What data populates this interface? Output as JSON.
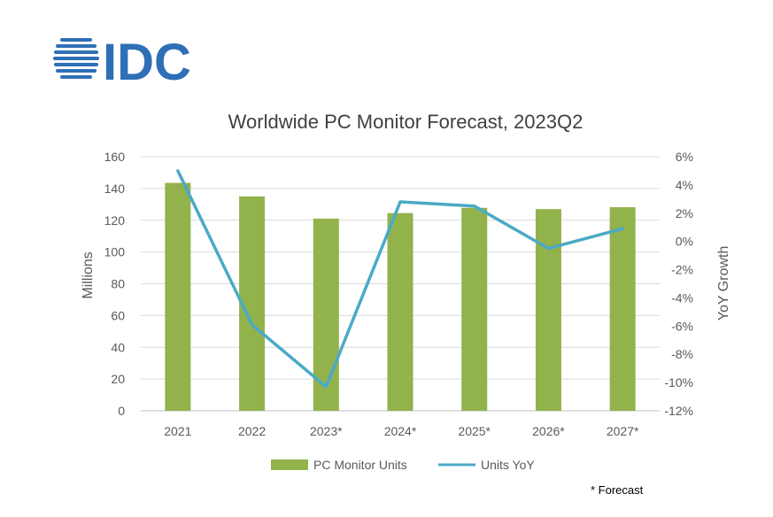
{
  "logo": {
    "text": "IDC",
    "color": "#2e6fb6"
  },
  "note": "* Forecast",
  "colors": {
    "bar": "#92b24c",
    "line": "#4aaac6",
    "grid": "#d9d9d9",
    "axis": "#bfbfbf"
  },
  "chart_data": {
    "type": "bar",
    "title": "Worldwide PC Monitor Forecast, 2023Q2",
    "categories": [
      "2021",
      "2022",
      "2023*",
      "2024*",
      "2025*",
      "2026*",
      "2027*"
    ],
    "series": [
      {
        "name": "PC Monitor Units",
        "type": "bar",
        "axis": "left",
        "values": [
          143.5,
          135.0,
          121.0,
          124.5,
          127.8,
          127.0,
          128.2
        ]
      },
      {
        "name": "Units YoY",
        "type": "line",
        "axis": "right",
        "values": [
          5.0,
          -5.9,
          -10.3,
          2.8,
          2.5,
          -0.5,
          0.9
        ]
      }
    ],
    "ylabel": "Millions",
    "y2label": "YoY Growth",
    "ylim": [
      0,
      160
    ],
    "y2lim": [
      -12,
      6
    ],
    "yticks": [
      "0",
      "20",
      "40",
      "60",
      "80",
      "100",
      "120",
      "140",
      "160"
    ],
    "y2ticks": [
      "-12%",
      "-10%",
      "-8%",
      "-6%",
      "-4%",
      "-2%",
      "0%",
      "2%",
      "4%",
      "6%"
    ],
    "grid": true,
    "legend": "bottom"
  }
}
